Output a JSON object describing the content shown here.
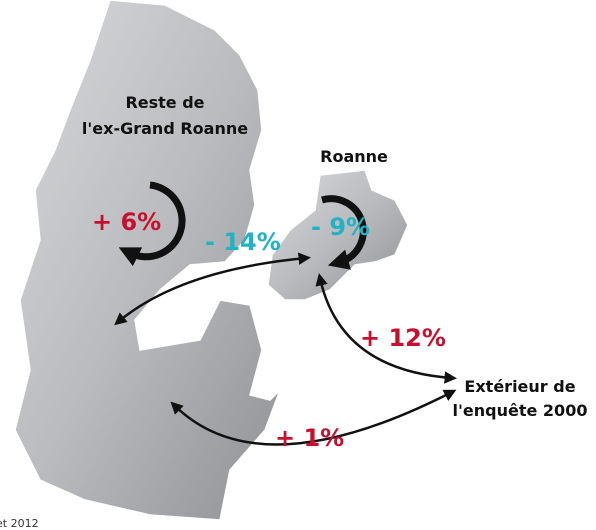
{
  "zones": [
    {
      "name": [
        "Reste de",
        "l'ex-Grand Roanne"
      ],
      "change": "+ 6%"
    },
    {
      "name": [
        "Roanne"
      ],
      "change": "- 9%"
    },
    {
      "name": [
        "Extérieur de",
        "l'enquête 2000"
      ]
    }
  ],
  "flows": [
    {
      "from": "Reste de l'ex-Grand Roanne",
      "to": "Roanne",
      "change": "- 14%"
    },
    {
      "from": "Roanne",
      "to": "Extérieur",
      "change": "+ 12%"
    },
    {
      "from": "Reste de l'ex-Grand Roanne",
      "to": "Extérieur",
      "change": "+ 1%"
    }
  ],
  "footer": "et 2012"
}
